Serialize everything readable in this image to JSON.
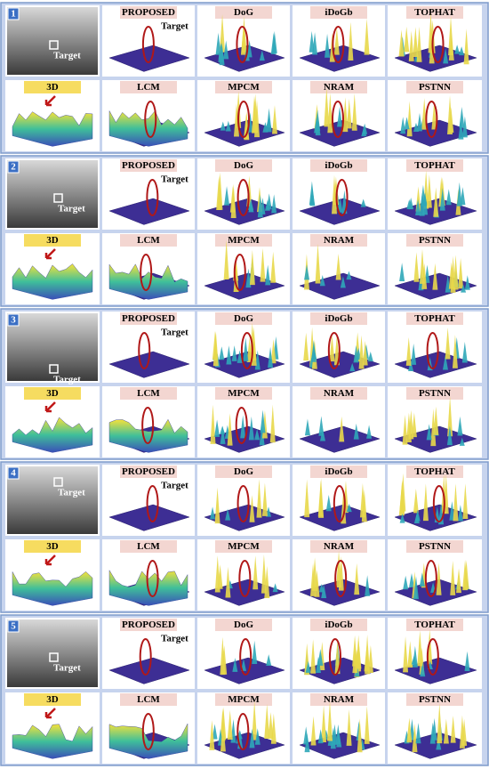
{
  "panels": [
    {
      "number": "1",
      "image_target": "Target",
      "proposed_target": "Target",
      "top_methods": [
        "PROPOSED",
        "DoG",
        "iDoGb",
        "TOPHAT"
      ],
      "bottom_label": "3D",
      "bottom_methods": [
        "LCM",
        "MPCM",
        "NRAM",
        "PSTNN"
      ]
    },
    {
      "number": "2",
      "image_target": "Target",
      "proposed_target": "Target",
      "top_methods": [
        "PROPOSED",
        "DoG",
        "iDoGb",
        "TOPHAT"
      ],
      "bottom_label": "3D",
      "bottom_methods": [
        "LCM",
        "MPCM",
        "NRAM",
        "PSTNN"
      ]
    },
    {
      "number": "3",
      "image_target": "Target",
      "proposed_target": "Target",
      "top_methods": [
        "PROPOSED",
        "DoG",
        "iDoGb",
        "TOPHAT"
      ],
      "bottom_label": "3D",
      "bottom_methods": [
        "LCM",
        "MPCM",
        "NRAM",
        "PSTNN"
      ]
    },
    {
      "number": "4",
      "image_target": "Target",
      "proposed_target": "Target",
      "top_methods": [
        "PROPOSED",
        "DoG",
        "iDoGb",
        "TOPHAT"
      ],
      "bottom_label": "3D",
      "bottom_methods": [
        "LCM",
        "MPCM",
        "NRAM",
        "PSTNN"
      ]
    },
    {
      "number": "5",
      "image_target": "Target",
      "proposed_target": "Target",
      "top_methods": [
        "PROPOSED",
        "DoG",
        "iDoGb",
        "TOPHAT"
      ],
      "bottom_label": "3D",
      "bottom_methods": [
        "LCM",
        "MPCM",
        "NRAM",
        "PSTNN"
      ]
    }
  ]
}
